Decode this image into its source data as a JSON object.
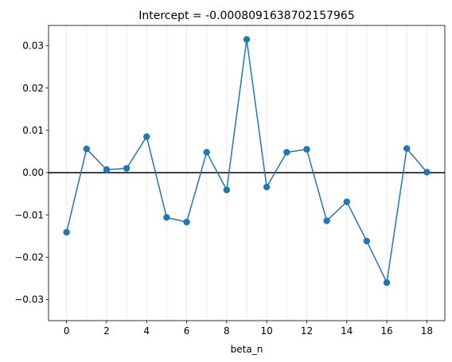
{
  "chart_data": {
    "type": "line",
    "title": "Intercept = -0.0008091638702157965",
    "xlabel": "beta_n",
    "ylabel": "",
    "xlim": [
      -0.9,
      18.9
    ],
    "ylim": [
      -0.035,
      0.0348
    ],
    "x_ticks": [
      0,
      2,
      4,
      6,
      8,
      10,
      12,
      14,
      16,
      18
    ],
    "x_tick_labels": [
      "0",
      "2",
      "4",
      "6",
      "8",
      "10",
      "12",
      "14",
      "16",
      "18"
    ],
    "y_ticks": [
      -0.03,
      -0.02,
      -0.01,
      0.0,
      0.01,
      0.02,
      0.03
    ],
    "y_tick_labels": [
      "−0.03",
      "−0.02",
      "−0.01",
      "0.00",
      "0.01",
      "0.02",
      "0.03"
    ],
    "grid": "vertical gridlines at each integer x",
    "reference_line_y": 0.0,
    "colors": {
      "series": "#1f77b4",
      "reference_line": "#000000",
      "grid": "#e6e6e6",
      "axes": "#000000",
      "background": "#ffffff"
    },
    "series": [
      {
        "x": [
          0,
          1,
          2,
          3,
          4,
          5,
          6,
          7,
          8,
          9,
          10,
          11,
          12,
          13,
          14,
          15,
          16,
          17,
          18
        ],
        "values": [
          -0.0141,
          0.0056,
          0.0007,
          0.001,
          0.0085,
          -0.0106,
          -0.0117,
          0.0048,
          -0.0041,
          0.0315,
          -0.0034,
          0.0048,
          0.0055,
          -0.0114,
          -0.0069,
          -0.0162,
          -0.026,
          0.0057,
          0.0001
        ]
      }
    ]
  }
}
